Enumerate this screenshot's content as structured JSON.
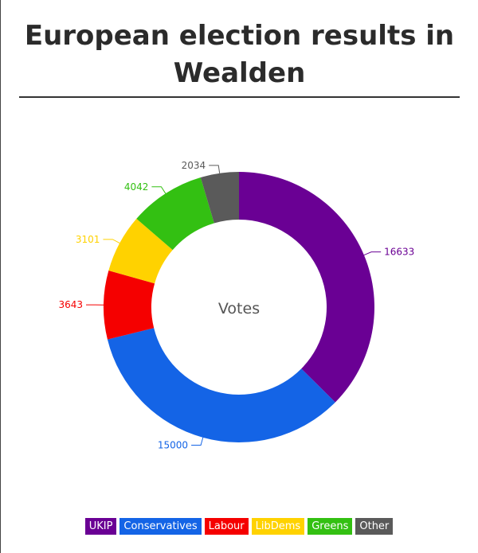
{
  "title": "European election results in Wealden",
  "chart_data": {
    "type": "pie",
    "variant": "donut",
    "center_label": "Votes",
    "legend_position": "bottom",
    "series": [
      {
        "name": "UKIP",
        "value": 16633,
        "color": "#6a0094"
      },
      {
        "name": "Conservatives",
        "value": 15000,
        "color": "#1464e6"
      },
      {
        "name": "Labour",
        "value": 3643,
        "color": "#f50000"
      },
      {
        "name": "LibDems",
        "value": 3101,
        "color": "#ffd200"
      },
      {
        "name": "Greens",
        "value": 4042,
        "color": "#33c012"
      },
      {
        "name": "Other",
        "value": 2034,
        "color": "#5a5a5a"
      }
    ]
  }
}
